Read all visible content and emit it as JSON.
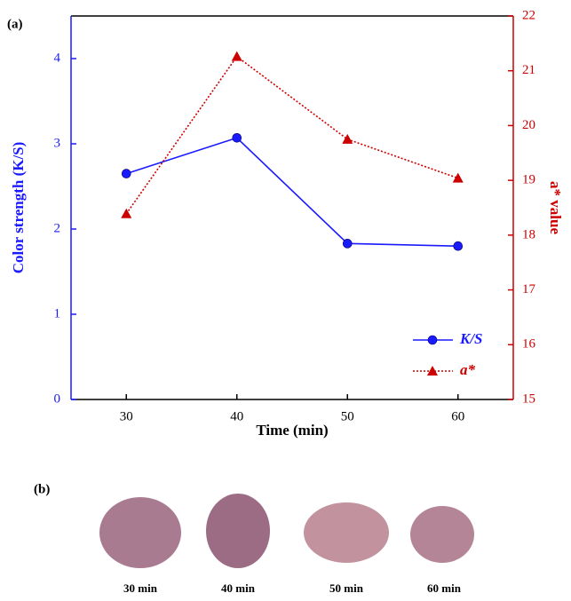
{
  "chart_data": {
    "type": "line",
    "panel_label": "(a)",
    "x_label": "Time (min)",
    "y_label": "Color strength (K/S)",
    "y2_label": "a* value",
    "x": [
      30,
      40,
      50,
      60
    ],
    "xlim": [
      25,
      65
    ],
    "xticks": [
      30,
      40,
      50,
      60
    ],
    "ylim": [
      0,
      4.5
    ],
    "yticks": [
      0,
      1,
      2,
      3,
      4
    ],
    "y2lim": [
      15,
      22
    ],
    "y2ticks": [
      15,
      16,
      17,
      18,
      19,
      20,
      21,
      22
    ],
    "grid": false,
    "legend": "lower right",
    "series": [
      {
        "name": "K/S",
        "color": "#1a1aff",
        "marker": "circle",
        "dash": "solid",
        "values": [
          2.65,
          3.07,
          1.83,
          1.8
        ]
      },
      {
        "name": "a*",
        "color": "#cc0000",
        "marker": "triangle",
        "dash": "dotted",
        "axis": "y2",
        "values": [
          18.39,
          21.26,
          19.75,
          19.04
        ]
      }
    ]
  },
  "panel_b": {
    "label": "(b)",
    "captions": [
      "30 min",
      "40 min",
      "50 min",
      "60 min"
    ]
  }
}
